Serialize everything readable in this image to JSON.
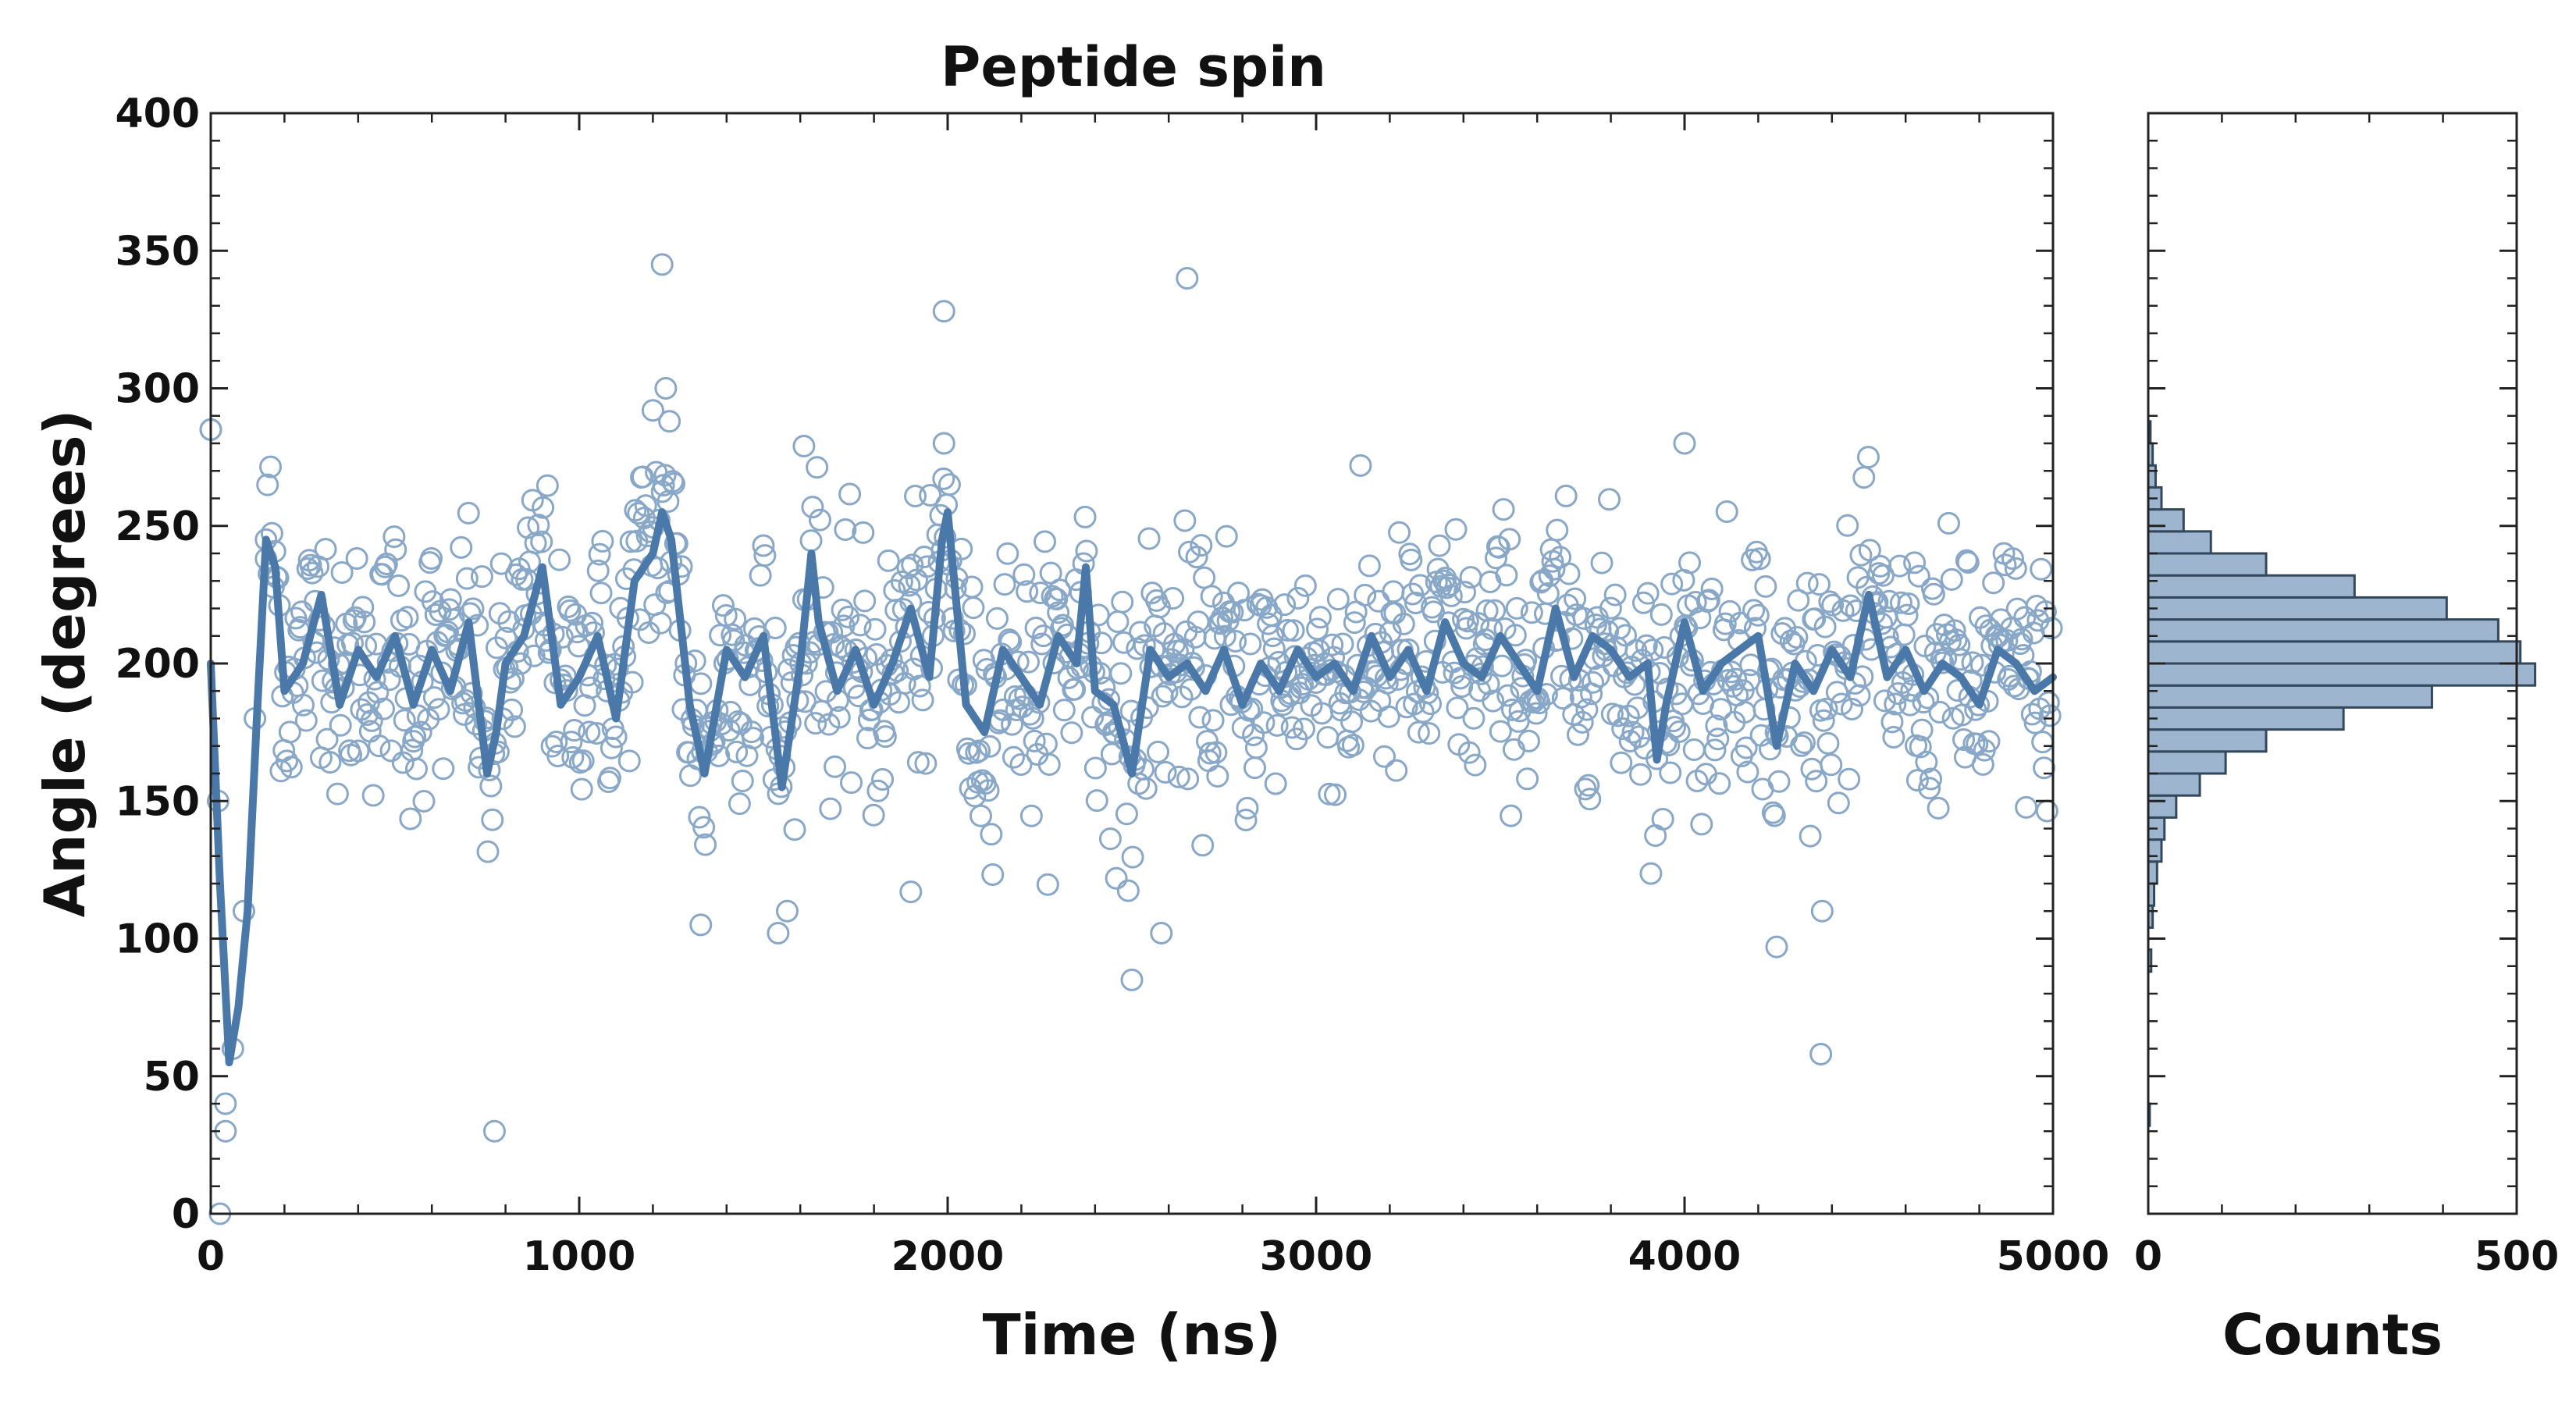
{
  "colors": {
    "accent": "#4a78a8",
    "marker": "#89a8c8",
    "hist_fill": "#9db5cf",
    "hist_edge": "#34485c"
  },
  "chart_data": [
    {
      "type": "scatter",
      "title": "Peptide spin",
      "xlabel": "Time (ns)",
      "ylabel": "Angle (degrees)",
      "xlim": [
        0,
        5000
      ],
      "ylim": [
        0,
        400
      ],
      "xticks": [
        "0",
        "1000",
        "2000",
        "3000",
        "4000",
        "5000"
      ],
      "yticks": [
        "0",
        "50",
        "100",
        "150",
        "200",
        "250",
        "300",
        "350",
        "400"
      ],
      "grid": false,
      "generated_points_note": "dense scatter approximated from the following summary",
      "scatter_summary": {
        "n_points": 1200,
        "initial_transient": [
          [
            0,
            285
          ],
          [
            20,
            150
          ],
          [
            40,
            40
          ],
          [
            60,
            60
          ],
          [
            90,
            110
          ],
          [
            120,
            180
          ],
          [
            150,
            245
          ]
        ],
        "steady_mean": 200,
        "steady_spread": 25
      },
      "outliers": [
        [
          0,
          285
        ],
        [
          25,
          0
        ],
        [
          40,
          30
        ],
        [
          770,
          30
        ],
        [
          1225,
          345
        ],
        [
          1990,
          328
        ],
        [
          2650,
          340
        ],
        [
          4000,
          280
        ],
        [
          4370,
          58
        ],
        [
          1330,
          105
        ],
        [
          1540,
          102
        ],
        [
          1900,
          117
        ],
        [
          2500,
          85
        ],
        [
          2580,
          102
        ],
        [
          4250,
          97
        ],
        [
          1235,
          300
        ],
        [
          1200,
          292
        ],
        [
          1245,
          288
        ],
        [
          1990,
          280
        ],
        [
          1610,
          279
        ]
      ],
      "running_average": {
        "x": [
          0,
          25,
          50,
          75,
          100,
          125,
          150,
          175,
          200,
          250,
          300,
          350,
          400,
          450,
          500,
          550,
          600,
          650,
          700,
          750,
          775,
          800,
          850,
          900,
          950,
          1000,
          1050,
          1100,
          1150,
          1200,
          1225,
          1250,
          1300,
          1340,
          1400,
          1450,
          1500,
          1550,
          1600,
          1630,
          1650,
          1700,
          1750,
          1800,
          1850,
          1900,
          1950,
          1985,
          2000,
          2050,
          2100,
          2150,
          2200,
          2250,
          2300,
          2350,
          2375,
          2400,
          2450,
          2500,
          2550,
          2600,
          2650,
          2700,
          2750,
          2800,
          2850,
          2900,
          2950,
          3000,
          3050,
          3100,
          3150,
          3200,
          3250,
          3300,
          3350,
          3400,
          3450,
          3500,
          3550,
          3600,
          3650,
          3700,
          3750,
          3800,
          3850,
          3900,
          3925,
          3950,
          4000,
          4050,
          4100,
          4150,
          4200,
          4250,
          4300,
          4350,
          4400,
          4450,
          4500,
          4550,
          4600,
          4650,
          4700,
          4750,
          4800,
          4850,
          4900,
          4950,
          5000
        ],
        "y": [
          200,
          120,
          55,
          75,
          110,
          180,
          245,
          235,
          190,
          200,
          225,
          185,
          205,
          195,
          210,
          185,
          205,
          190,
          215,
          160,
          175,
          200,
          210,
          235,
          185,
          195,
          210,
          180,
          230,
          240,
          255,
          245,
          185,
          160,
          205,
          195,
          210,
          155,
          200,
          240,
          215,
          190,
          205,
          185,
          200,
          220,
          195,
          245,
          255,
          185,
          175,
          205,
          195,
          185,
          210,
          200,
          235,
          190,
          185,
          160,
          205,
          195,
          200,
          190,
          205,
          185,
          200,
          190,
          205,
          195,
          200,
          190,
          210,
          195,
          205,
          190,
          215,
          200,
          195,
          210,
          200,
          190,
          220,
          195,
          210,
          205,
          195,
          200,
          165,
          185,
          215,
          190,
          200,
          205,
          210,
          170,
          200,
          190,
          205,
          195,
          225,
          195,
          205,
          190,
          200,
          195,
          185,
          205,
          200,
          190,
          195
        ]
      }
    },
    {
      "type": "bar",
      "orientation": "horizontal",
      "xlabel": "Counts",
      "xlim": [
        0,
        500
      ],
      "xticks": [
        "0",
        "500"
      ],
      "ylim": [
        0,
        400
      ],
      "bin_width": 8,
      "bin_starts": [
        32,
        88,
        104,
        112,
        120,
        128,
        136,
        144,
        152,
        160,
        168,
        176,
        184,
        192,
        200,
        208,
        216,
        224,
        232,
        240,
        248,
        256,
        264,
        272,
        280
      ],
      "counts": [
        2,
        4,
        6,
        8,
        12,
        18,
        22,
        38,
        70,
        105,
        160,
        265,
        385,
        525,
        505,
        475,
        405,
        280,
        160,
        85,
        48,
        18,
        10,
        6,
        3
      ]
    }
  ]
}
